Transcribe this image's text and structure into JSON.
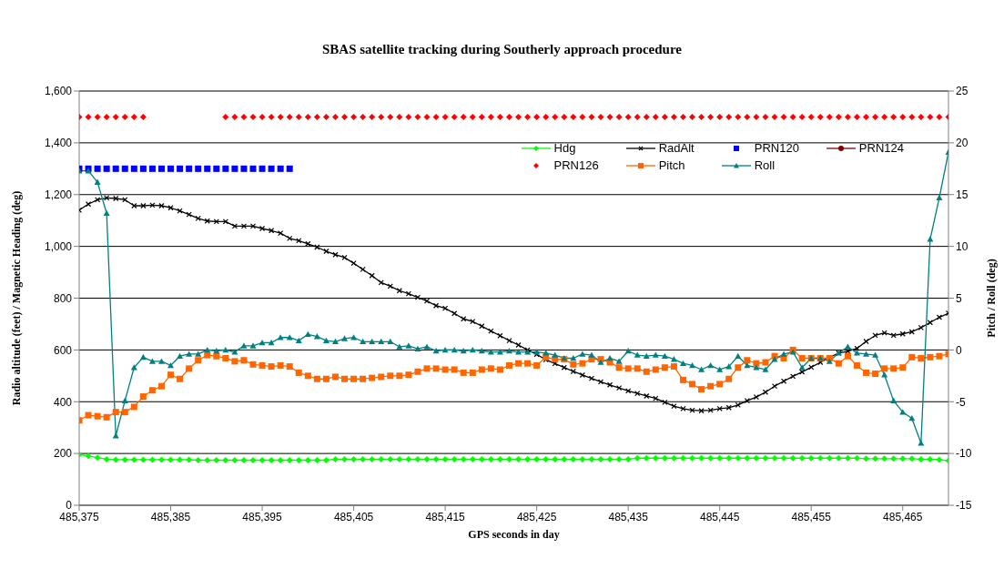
{
  "chart_data": {
    "type": "line",
    "title": "SBAS satellite tracking during Southerly approach procedure",
    "xlabel": "GPS seconds in day",
    "ylabel": "Radio altitude (feet) / Magnetic Heading (deg)",
    "y2label": "Pitch / Roll (deg)",
    "x": [
      485375,
      485376,
      485377,
      485378,
      485379,
      485380,
      485381,
      485382,
      485383,
      485384,
      485385,
      485386,
      485387,
      485388,
      485389,
      485390,
      485391,
      485392,
      485393,
      485394,
      485395,
      485396,
      485397,
      485398,
      485399,
      485400,
      485401,
      485402,
      485403,
      485404,
      485405,
      485406,
      485407,
      485408,
      485409,
      485410,
      485411,
      485412,
      485413,
      485414,
      485415,
      485416,
      485417,
      485418,
      485419,
      485420,
      485421,
      485422,
      485423,
      485424,
      485425,
      485426,
      485427,
      485428,
      485429,
      485430,
      485431,
      485432,
      485433,
      485434,
      485435,
      485436,
      485437,
      485438,
      485439,
      485440,
      485441,
      485442,
      485443,
      485444,
      485445,
      485446,
      485447,
      485448,
      485449,
      485450,
      485451,
      485452,
      485453,
      485454,
      485455,
      485456,
      485457,
      485458,
      485459,
      485460,
      485461,
      485462,
      485463,
      485464,
      485465,
      485466,
      485467,
      485468,
      485469,
      485470
    ],
    "xlim": [
      485375,
      485470
    ],
    "xticks": [
      {
        "value": 485375,
        "label": "485,375"
      },
      {
        "value": 485385,
        "label": "485,385"
      },
      {
        "value": 485395,
        "label": "485,395"
      },
      {
        "value": 485405,
        "label": "485,405"
      },
      {
        "value": 485415,
        "label": "485,415"
      },
      {
        "value": 485425,
        "label": "485,425"
      },
      {
        "value": 485435,
        "label": "485,435"
      },
      {
        "value": 485445,
        "label": "485,445"
      },
      {
        "value": 485455,
        "label": "485,455"
      },
      {
        "value": 485465,
        "label": "485,465"
      }
    ],
    "ylim": [
      0,
      1600
    ],
    "yticks": [
      0,
      200,
      400,
      600,
      800,
      {
        "value": 1000,
        "label": "1,000"
      },
      {
        "value": 1200,
        "label": "1,200"
      },
      {
        "value": 1400,
        "label": "1,400"
      },
      {
        "value": 1600,
        "label": "1,600"
      }
    ],
    "y2lim": [
      -15,
      25
    ],
    "y2ticks": [
      -15,
      -10,
      -5,
      0,
      5,
      10,
      15,
      20,
      25
    ],
    "grid": "y",
    "legend": "top right",
    "series": [
      {
        "name": "Hdg",
        "color": "#00ff00",
        "marker": "diamond",
        "values": [
          196,
          190,
          184,
          178,
          176,
          176,
          176,
          176,
          176,
          176,
          176,
          176,
          176,
          174,
          174,
          174,
          174,
          174,
          174,
          174,
          174,
          174,
          174,
          174,
          174,
          174,
          174,
          174,
          178,
          178,
          178,
          178,
          178,
          178,
          178,
          178,
          178,
          178,
          178,
          178,
          178,
          178,
          178,
          178,
          178,
          178,
          178,
          178,
          178,
          178,
          178,
          178,
          178,
          178,
          178,
          178,
          178,
          178,
          178,
          178,
          178,
          182,
          182,
          182,
          182,
          182,
          182,
          182,
          182,
          182,
          182,
          182,
          182,
          182,
          182,
          182,
          182,
          182,
          182,
          182,
          182,
          182,
          182,
          182,
          182,
          182,
          180,
          180,
          180,
          180,
          180,
          180,
          178,
          178,
          176,
          172
        ]
      },
      {
        "name": "RadAlt",
        "color": "#000000",
        "marker": "cross",
        "values": [
          1140,
          1163,
          1180,
          1187,
          1185,
          1180,
          1157,
          1157,
          1159,
          1157,
          1149,
          1137,
          1123,
          1108,
          1098,
          1096,
          1096,
          1078,
          1078,
          1078,
          1069,
          1061,
          1051,
          1031,
          1022,
          1010,
          997,
          981,
          968,
          957,
          935,
          911,
          887,
          860,
          846,
          829,
          817,
          803,
          789,
          771,
          761,
          741,
          720,
          710,
          692,
          673,
          655,
          636,
          619,
          600,
          583,
          562,
          547,
          532,
          517,
          503,
          490,
          477,
          465,
          453,
          442,
          432,
          422,
          413,
          398,
          383,
          373,
          367,
          365,
          367,
          373,
          377,
          387,
          404,
          418,
          437,
          460,
          479,
          498,
          515,
          533,
          552,
          571,
          588,
          595,
          606,
          633,
          656,
          666,
          656,
          662,
          670,
          686,
          706,
          726,
          742
        ]
      },
      {
        "name": "PRN120",
        "color": "#0000ff",
        "type": "scatter",
        "marker": "square",
        "values": [
          1300,
          1300,
          1300,
          1300,
          1300,
          1300,
          1300,
          1300,
          1300,
          1300,
          1300,
          1300,
          1300,
          1300,
          1300,
          1300,
          1300,
          1300,
          1300,
          1300,
          1300,
          1300,
          1300,
          1300,
          null,
          null,
          null,
          null,
          null,
          null,
          null,
          null,
          null,
          null,
          null,
          null,
          null,
          null,
          null,
          null,
          null,
          null,
          null,
          null,
          null,
          null,
          null,
          null,
          null,
          null,
          null,
          null,
          null,
          null,
          null,
          null,
          null,
          null,
          null,
          null,
          null,
          null,
          null,
          null,
          null,
          null,
          null,
          null,
          null,
          null,
          null,
          null,
          null,
          null,
          null,
          null,
          null,
          null,
          null,
          null,
          null,
          null,
          null,
          null,
          null,
          null,
          null,
          null,
          null,
          null,
          null,
          null,
          null,
          null,
          null,
          null
        ]
      },
      {
        "name": "PRN124",
        "color": "#800000",
        "marker": "circle",
        "values": [
          null,
          null,
          null,
          null,
          null,
          null,
          null,
          null,
          null,
          null,
          null,
          null,
          null,
          null,
          null,
          null,
          null,
          null,
          null,
          null,
          null,
          null,
          null,
          null,
          null,
          null,
          null,
          null,
          null,
          null,
          null,
          null,
          null,
          null,
          null,
          null,
          null,
          null,
          null,
          null,
          null,
          null,
          null,
          null,
          null,
          null,
          null,
          null,
          null,
          null,
          null,
          null,
          null,
          null,
          null,
          null,
          null,
          null,
          null,
          null,
          null,
          null,
          null,
          null,
          null,
          null,
          null,
          null,
          null,
          null,
          null,
          null,
          null,
          null,
          null,
          null,
          null,
          null,
          null,
          null,
          null,
          null,
          null,
          null,
          null,
          null,
          null,
          null,
          null,
          null,
          null,
          null,
          null,
          null,
          null,
          null
        ]
      },
      {
        "name": "PRN126",
        "color": "#ff0000",
        "type": "scatter",
        "marker": "diamond",
        "values": [
          1500,
          1500,
          1500,
          1500,
          1500,
          1500,
          1500,
          1500,
          null,
          null,
          null,
          null,
          null,
          null,
          null,
          null,
          1500,
          1500,
          1500,
          1500,
          1500,
          1500,
          1500,
          1500,
          1500,
          1500,
          1500,
          1500,
          1500,
          1500,
          1500,
          1500,
          1500,
          1500,
          1500,
          1500,
          1500,
          1500,
          1500,
          1500,
          1500,
          1500,
          1500,
          1500,
          1500,
          1500,
          1500,
          1500,
          1500,
          1500,
          1500,
          1500,
          1500,
          1500,
          1500,
          1500,
          1500,
          1500,
          1500,
          1500,
          1500,
          1500,
          1500,
          1500,
          1500,
          1500,
          1500,
          1500,
          1500,
          1500,
          1500,
          1500,
          1500,
          1500,
          1500,
          1500,
          1500,
          1500,
          1500,
          1500,
          1500,
          1500,
          1500,
          1500,
          1500,
          1500,
          1500,
          1500,
          1500,
          1500,
          1500,
          1500,
          1500,
          1500,
          1500,
          1500
        ]
      },
      {
        "name": "Pitch",
        "color": "#ff6600",
        "marker": "square",
        "axis": "y2",
        "values": [
          -6.8,
          -6.3,
          -6.4,
          -6.5,
          -6.0,
          -6.0,
          -5.5,
          -4.5,
          -3.9,
          -3.5,
          -2.4,
          -2.8,
          -1.8,
          -1.0,
          -0.5,
          -0.6,
          -0.8,
          -1.1,
          -1.0,
          -1.4,
          -1.5,
          -1.6,
          -1.5,
          -1.6,
          -2.2,
          -2.5,
          -2.8,
          -2.8,
          -2.6,
          -2.8,
          -2.8,
          -2.8,
          -2.7,
          -2.6,
          -2.5,
          -2.5,
          -2.4,
          -2.1,
          -1.8,
          -1.8,
          -1.9,
          -1.9,
          -2.2,
          -2.2,
          -1.9,
          -1.8,
          -1.9,
          -1.5,
          -1.3,
          -1.3,
          -1.5,
          -0.7,
          -0.9,
          -0.9,
          -1.4,
          -1.3,
          -0.9,
          -0.9,
          -1.2,
          -1.7,
          -1.8,
          -1.8,
          -2.1,
          -1.9,
          -1.7,
          -1.6,
          -2.9,
          -3.3,
          -3.8,
          -3.5,
          -3.3,
          -2.8,
          -1.7,
          -1.0,
          -1.3,
          -1.2,
          -0.6,
          -0.8,
          0.0,
          -0.8,
          -0.8,
          -0.8,
          -0.8,
          -1.3,
          -0.6,
          -1.5,
          -2.2,
          -2.3,
          -1.8,
          -1.8,
          -1.7,
          -0.7,
          -0.8,
          -0.7,
          -0.6,
          -0.4
        ]
      },
      {
        "name": "Roll",
        "color": "#008080",
        "marker": "triangle",
        "axis": "y2",
        "values": [
          17.3,
          17.3,
          16.2,
          13.2,
          -8.3,
          -4.9,
          -1.7,
          -0.7,
          -1.1,
          -1.1,
          -1.5,
          -0.6,
          -0.4,
          -0.4,
          0.0,
          -0.1,
          0.0,
          -0.2,
          0.4,
          0.4,
          0.7,
          0.7,
          1.2,
          1.2,
          0.9,
          1.5,
          1.3,
          0.9,
          0.8,
          1.1,
          1.2,
          0.8,
          0.8,
          0.8,
          0.8,
          0.3,
          0.4,
          0.1,
          0.3,
          -0.1,
          0.0,
          0.0,
          -0.1,
          0.0,
          -0.1,
          -0.2,
          -0.2,
          -0.1,
          -0.2,
          -0.2,
          -0.2,
          -0.3,
          -0.5,
          -0.8,
          -0.8,
          -0.4,
          -0.5,
          -1.2,
          -0.8,
          -1.1,
          -0.1,
          -0.5,
          -0.6,
          -0.5,
          -0.6,
          -0.9,
          -1.3,
          -1.5,
          -1.9,
          -1.5,
          -1.9,
          -1.6,
          -0.6,
          -1.5,
          -1.7,
          -1.9,
          -0.9,
          -0.4,
          -0.2,
          -1.7,
          -0.8,
          -0.8,
          -1.1,
          -0.3,
          0.3,
          -0.3,
          -0.4,
          -0.5,
          -2.4,
          -4.9,
          -6.0,
          -6.6,
          -9.0,
          10.7,
          14.7,
          19.1
        ]
      }
    ]
  }
}
